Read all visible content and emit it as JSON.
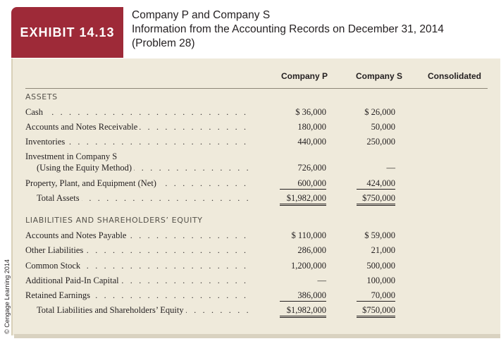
{
  "exhibit": {
    "label": "EXHIBIT 14.13"
  },
  "title": {
    "line1": "Company P and Company S",
    "line2": "Information from the Accounting Records on December 31, 2014",
    "line3": "(Problem 28)"
  },
  "credit": "© Cengage Learning 2014",
  "columns": [
    "Company P",
    "Company S",
    "Consolidated"
  ],
  "sections": {
    "assets": "ASSETS",
    "liabilities": "LIABILITIES AND SHAREHOLDERS’ EQUITY"
  },
  "rows": [
    {
      "label": "Cash",
      "p": "$   36,000",
      "s": "$ 26,000"
    },
    {
      "label": "Accounts and Notes Receivable",
      "p": "180,000",
      "s": "50,000"
    },
    {
      "label": "Inventories",
      "p": "440,000",
      "s": "250,000"
    },
    {
      "label": "Investment in Company S",
      "p": "",
      "s": ""
    },
    {
      "label": "(Using the Equity Method)",
      "p": "726,000",
      "s": "—"
    },
    {
      "label": "Property, Plant, and Equipment (Net)",
      "p": "600,000",
      "s": "424,000"
    },
    {
      "label": "Total Assets",
      "p": "$1,982,000",
      "s": "$750,000"
    },
    {
      "label": "Accounts and Notes Payable",
      "p": "$  110,000",
      "s": "$ 59,000"
    },
    {
      "label": "Other Liabilities",
      "p": "286,000",
      "s": "21,000"
    },
    {
      "label": "Common Stock",
      "p": "1,200,000",
      "s": "500,000"
    },
    {
      "label": "Additional Paid-In Capital",
      "p": "—",
      "s": "100,000"
    },
    {
      "label": "Retained Earnings",
      "p": "386,000",
      "s": "70,000"
    },
    {
      "label": "Total Liabilities and Shareholders’ Equity",
      "p": "$1,982,000",
      "s": "$750,000"
    }
  ]
}
